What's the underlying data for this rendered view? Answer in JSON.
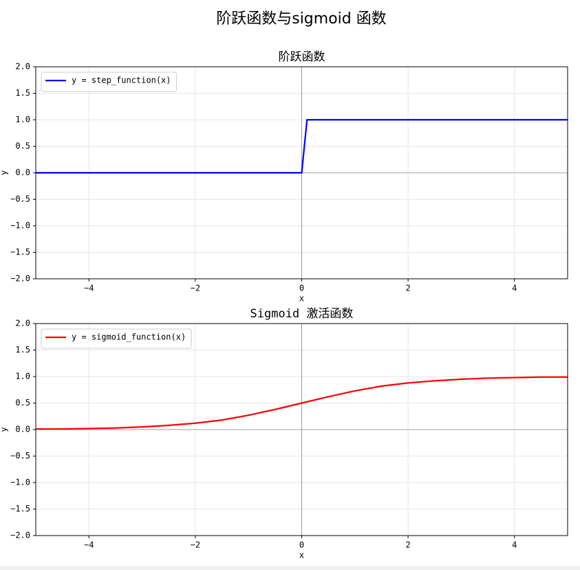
{
  "title": "阶跃函数与sigmoid 函数",
  "chart_data": [
    {
      "type": "line",
      "title": "阶跃函数",
      "x_label": "x",
      "y_label": "y",
      "x": [
        -5,
        0,
        0.1,
        5
      ],
      "series": [
        {
          "name": "y = step_function(x)",
          "color": "#0000ff",
          "values": [
            0,
            0,
            1,
            1
          ]
        }
      ],
      "xlim": [
        -5,
        5
      ],
      "xticks": [
        {
          "value": -4,
          "label": "−4"
        },
        {
          "value": -2,
          "label": "−2"
        },
        0,
        2,
        4
      ],
      "ylim": [
        -2,
        2
      ],
      "yticks": [
        {
          "value": -2,
          "label": "−2.0"
        },
        {
          "value": -1.5,
          "label": "−1.5"
        },
        {
          "value": -1,
          "label": "−1.0"
        },
        {
          "value": -0.5,
          "label": "−0.5"
        },
        {
          "value": 0,
          "label": "0.0"
        },
        0.5,
        {
          "value": 1,
          "label": "1.0"
        },
        1.5,
        {
          "value": 2,
          "label": "2.0"
        }
      ],
      "grid": true,
      "legend": "upper-left"
    },
    {
      "type": "line",
      "title": "Sigmoid 激活函数",
      "x_label": "x",
      "y_label": "y",
      "x": [
        -5,
        -4.5,
        -4,
        -3.5,
        -3,
        -2.5,
        -2,
        -1.5,
        -1,
        -0.5,
        0,
        0.5,
        1,
        1.5,
        2,
        2.5,
        3,
        3.5,
        4,
        4.5,
        5
      ],
      "series": [
        {
          "name": "y = sigmoid_function(x)",
          "color": "#ff0000",
          "values": [
            0.01,
            0.01,
            0.02,
            0.03,
            0.05,
            0.08,
            0.12,
            0.18,
            0.27,
            0.38,
            0.5,
            0.62,
            0.73,
            0.82,
            0.88,
            0.92,
            0.95,
            0.97,
            0.98,
            0.99,
            0.99
          ]
        }
      ],
      "xlim": [
        -5,
        5
      ],
      "xticks": [
        {
          "value": -4,
          "label": "−4"
        },
        {
          "value": -2,
          "label": "−2"
        },
        0,
        2,
        4
      ],
      "ylim": [
        -2,
        2
      ],
      "yticks": [
        {
          "value": -2,
          "label": "−2.0"
        },
        {
          "value": -1.5,
          "label": "−1.5"
        },
        {
          "value": -1,
          "label": "−1.0"
        },
        {
          "value": -0.5,
          "label": "−0.5"
        },
        {
          "value": 0,
          "label": "0.0"
        },
        0.5,
        {
          "value": 1,
          "label": "1.0"
        },
        1.5,
        {
          "value": 2,
          "label": "2.0"
        }
      ],
      "grid": true,
      "legend": "upper-left"
    }
  ]
}
